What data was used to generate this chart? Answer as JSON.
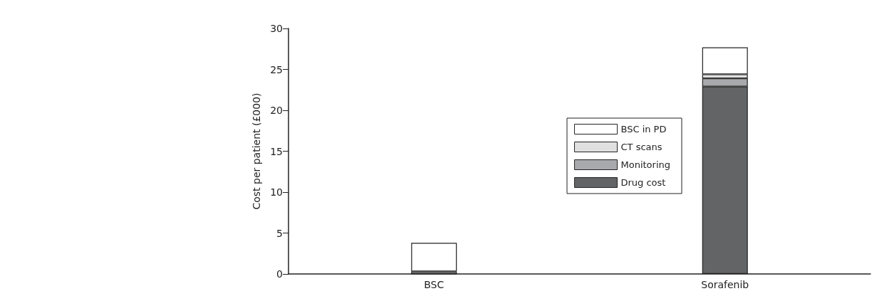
{
  "chart_data": {
    "type": "bar",
    "stacked": true,
    "ylabel": "Cost per patient (£000)",
    "categories": [
      "BSC",
      "Sorafenib"
    ],
    "series": [
      {
        "name": "Drug cost",
        "color": "#636466",
        "values": [
          0,
          22.9
        ]
      },
      {
        "name": "Monitoring",
        "color": "#a7a9ac",
        "values": [
          0.3,
          1.0
        ]
      },
      {
        "name": "CT scans",
        "color": "#e0e0e0",
        "values": [
          null,
          0.5
        ]
      },
      {
        "name": "BSC in PD",
        "color": "#ffffff",
        "values": [
          3.5,
          3.3
        ]
      }
    ],
    "ylim": [
      0,
      30
    ],
    "yticks": [
      0,
      5,
      10,
      15,
      20,
      25,
      30
    ],
    "grid": false,
    "legend": "right"
  }
}
